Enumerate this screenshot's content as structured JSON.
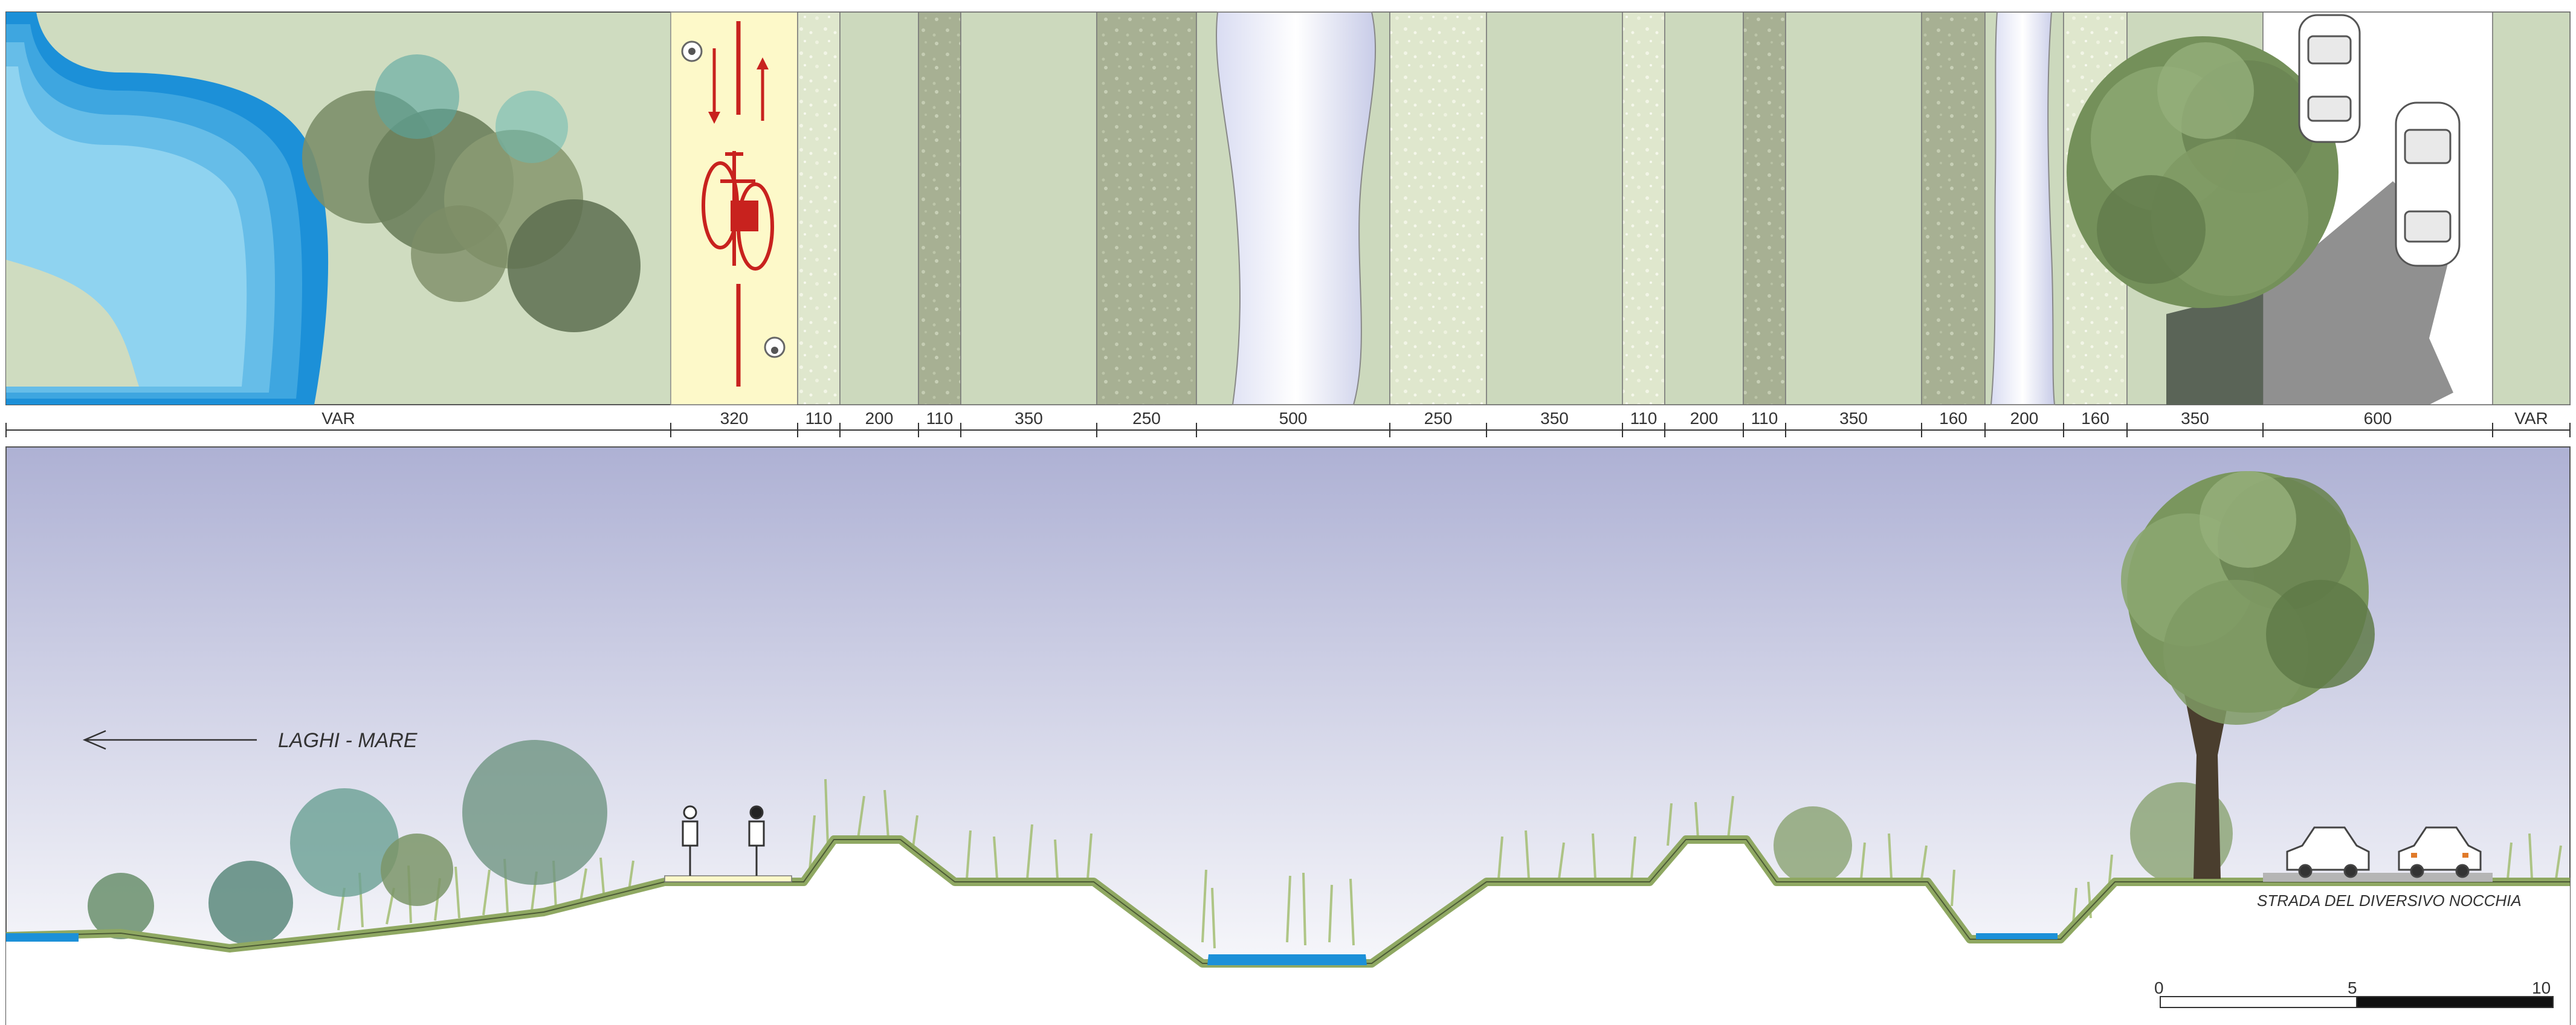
{
  "plan": {
    "strip_widths": [
      "VAR",
      "320",
      "110",
      "200",
      "110",
      "350",
      "250",
      "500",
      "250",
      "350",
      "110",
      "200",
      "110",
      "350",
      "160",
      "200",
      "160",
      "350",
      "600",
      "VAR"
    ]
  },
  "section": {
    "direction_label": "LAGHI - MARE",
    "road_label": "STRADA DEL DIVERSIVO NOCCHIA"
  },
  "scale_bar": {
    "ticks": [
      "0",
      "5",
      "10"
    ]
  },
  "colors": {
    "grass": "#cfdcc0",
    "grass_dark": "#a9b69a",
    "cycle_path": "#fdf9c9",
    "cycle_red": "#c8221e",
    "water": "#8fd3f0",
    "water_deep": "#1c90d8",
    "sky_top": "#b2b5d6",
    "sky_bottom": "#ffffff",
    "embankment": "#8fa862",
    "tree": "#6e8a4f"
  }
}
